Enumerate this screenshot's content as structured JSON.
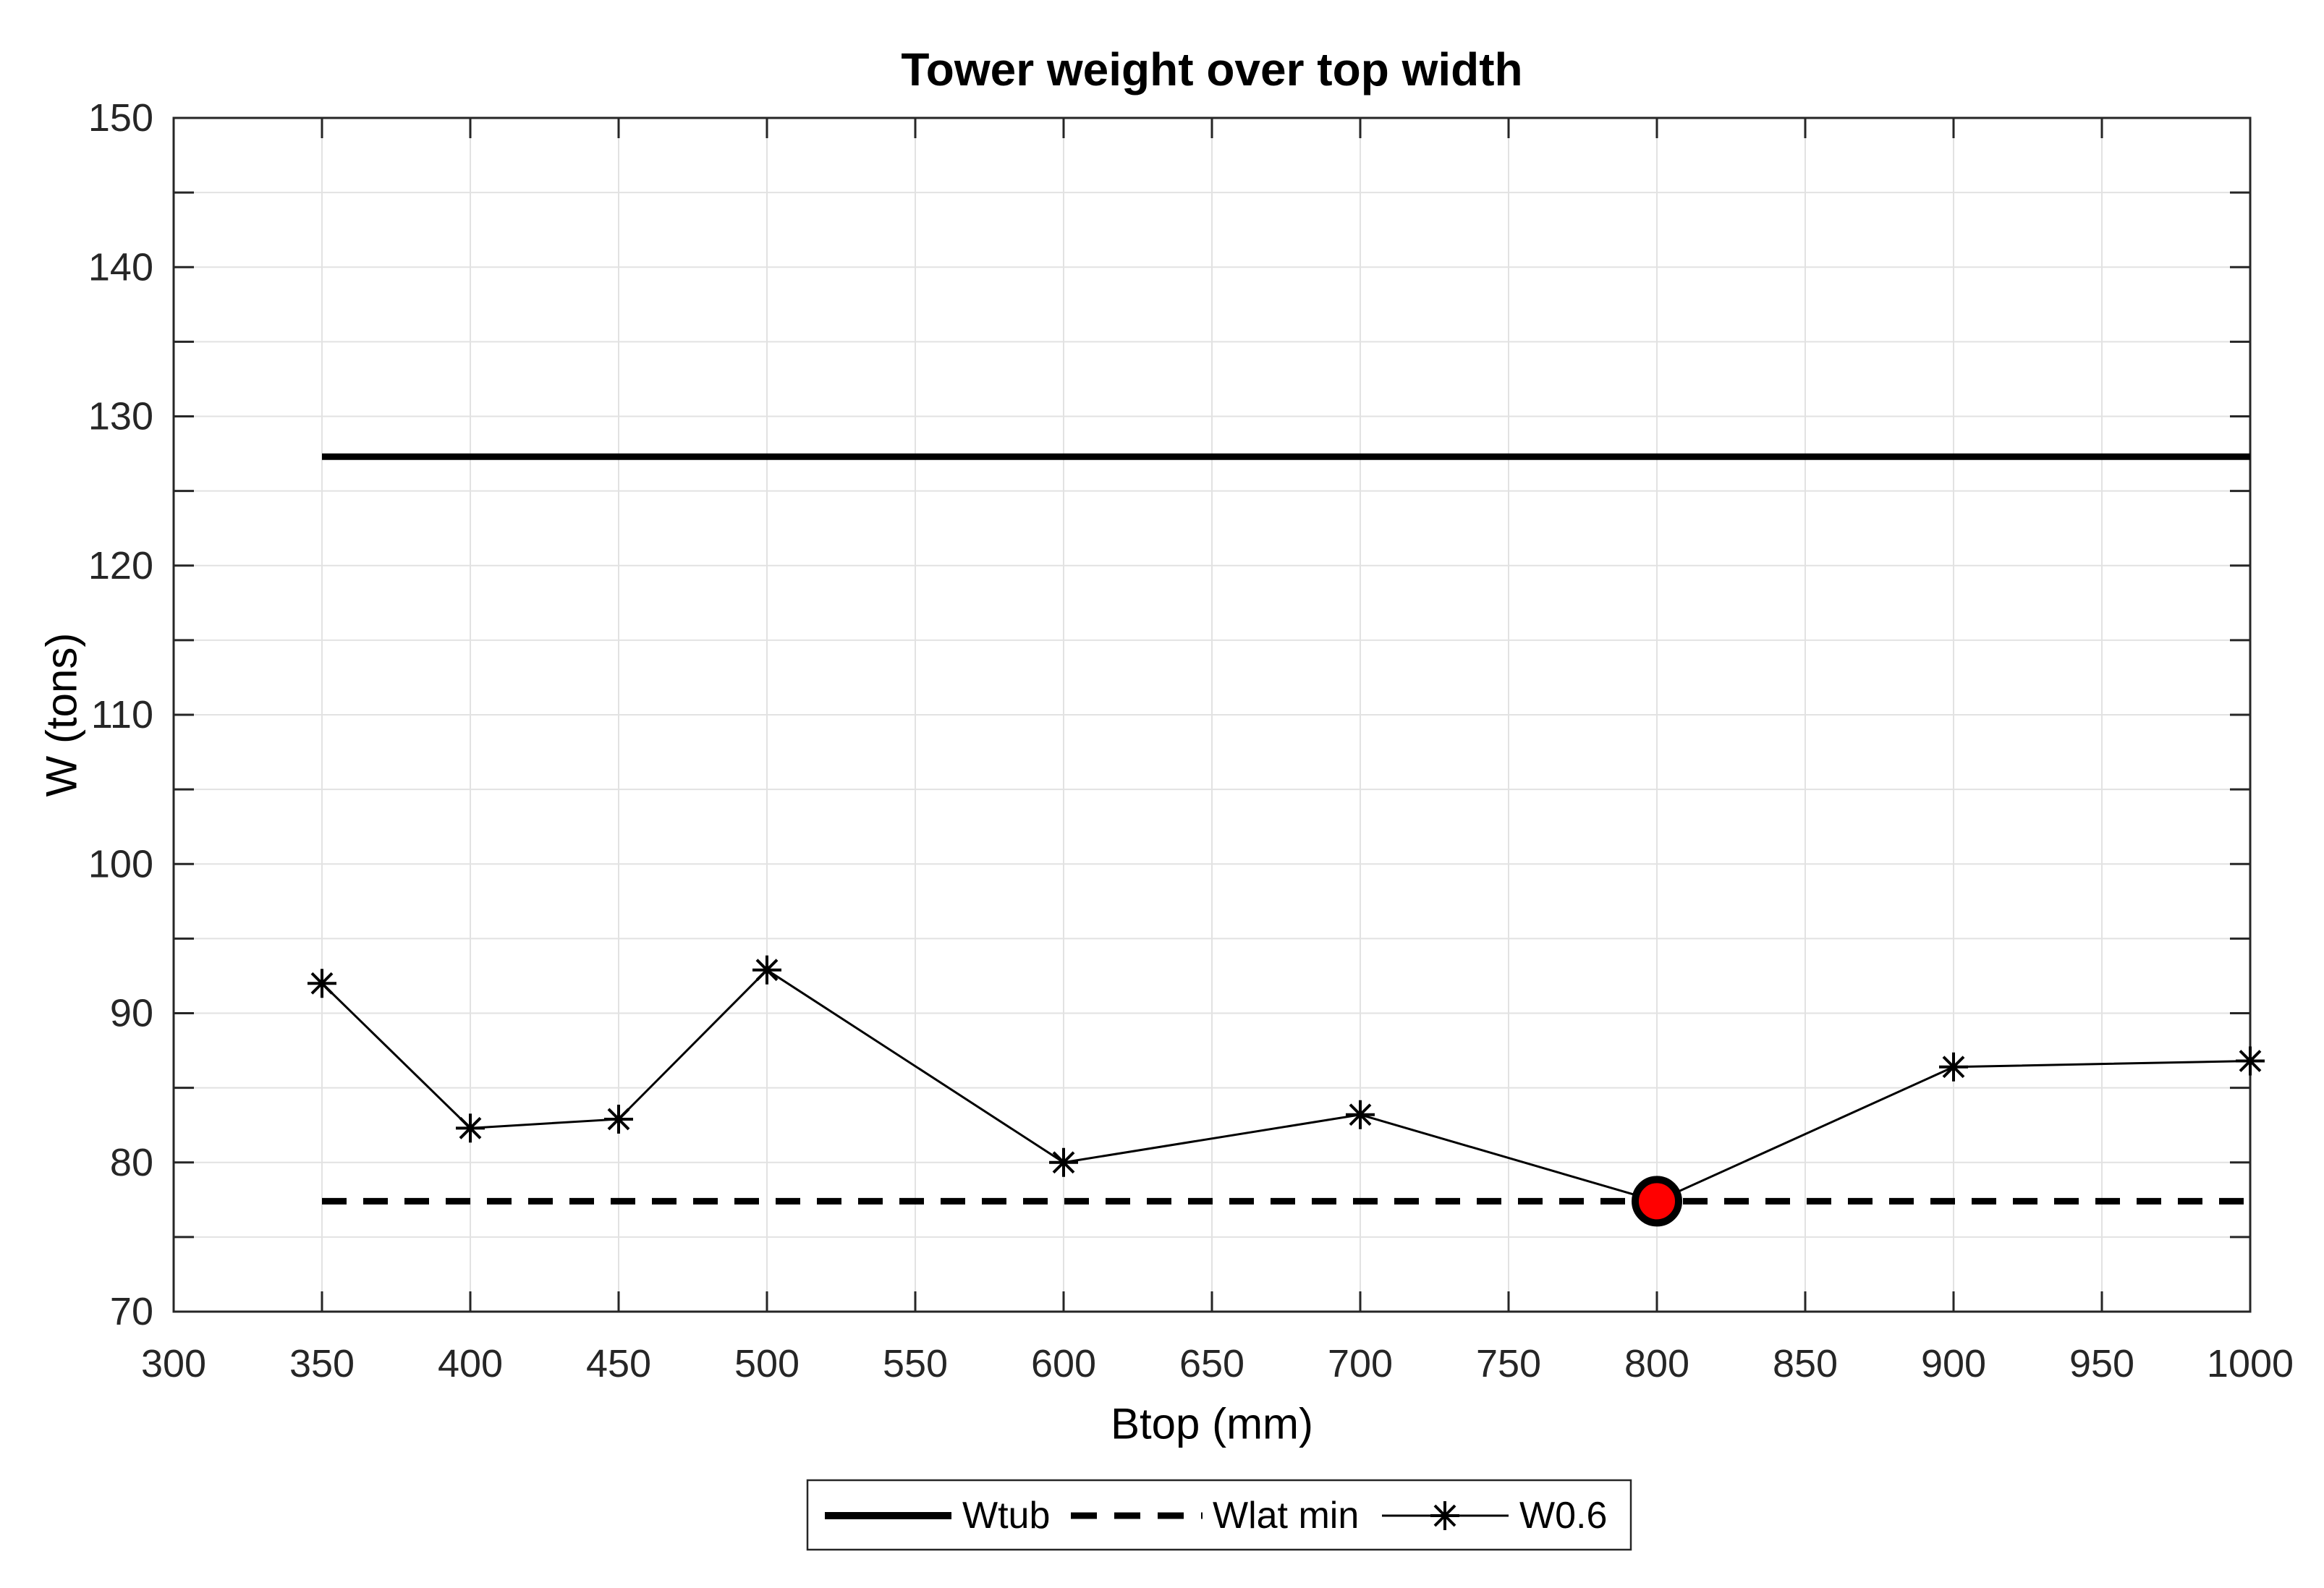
{
  "figure": {
    "background_color": "#FFFFFF",
    "axis_color": "#262626",
    "grid_color": "#E2E2E2",
    "data_line_color": "#000000",
    "highlight_fill_color": "#FF0000"
  },
  "chart_data": {
    "type": "line",
    "title": "Tower weight over top width",
    "xlabel": "Btop (mm)",
    "ylabel": "W (tons)",
    "xlim": [
      300,
      1000
    ],
    "ylim": [
      70,
      150
    ],
    "x_ticks": [
      300,
      350,
      400,
      450,
      500,
      550,
      600,
      650,
      700,
      750,
      800,
      850,
      900,
      950,
      1000
    ],
    "y_minor_ticks": [
      70,
      75,
      80,
      85,
      90,
      95,
      100,
      105,
      110,
      115,
      120,
      125,
      130,
      135,
      140,
      145,
      150
    ],
    "y_label_ticks": [
      70,
      80,
      90,
      100,
      110,
      120,
      130,
      140,
      150
    ],
    "grid": true,
    "legend_position": "below-plot-boxed-horizontal",
    "series": [
      {
        "name": "Wtub",
        "type": "hline",
        "line_style": "solid",
        "color": "#000000",
        "x_start": 350,
        "x_end": 1000,
        "value": 127.3
      },
      {
        "name": "Wlat min",
        "type": "hline",
        "line_style": "dashed",
        "color": "#000000",
        "x_start": 350,
        "x_end": 1000,
        "value": 77.4
      },
      {
        "name": "W0.6",
        "type": "line",
        "marker": "asterisk",
        "line_style": "solid-thin",
        "color": "#000000",
        "x": [
          350,
          400,
          450,
          500,
          600,
          700,
          800,
          900,
          1000
        ],
        "y": [
          92.0,
          82.3,
          82.9,
          92.9,
          80.0,
          83.2,
          77.4,
          86.4,
          86.8
        ]
      }
    ],
    "highlight_point": {
      "x": 800,
      "y": 77.4,
      "marker": "circle",
      "fill_color": "#FF0000",
      "edge_color": "#000000"
    }
  }
}
